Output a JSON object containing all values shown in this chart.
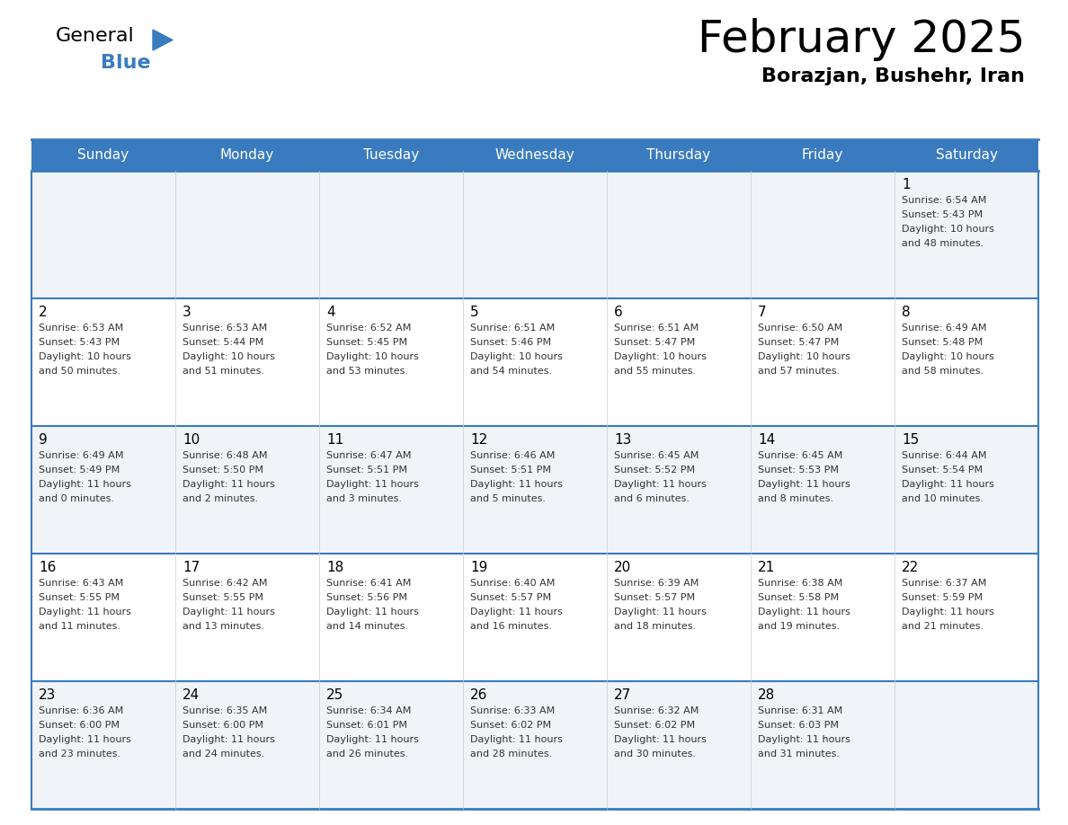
{
  "title": "February 2025",
  "subtitle": "Borazjan, Bushehr, Iran",
  "days_of_week": [
    "Sunday",
    "Monday",
    "Tuesday",
    "Wednesday",
    "Thursday",
    "Friday",
    "Saturday"
  ],
  "header_bg": "#3a7bbf",
  "header_text": "#ffffff",
  "cell_bg_odd": "#f0f3f7",
  "cell_bg_even": "#ffffff",
  "border_color": "#3a7bbf",
  "divider_color": "#3a7bbf",
  "text_color": "#333333",
  "calendar_data": [
    {
      "day": 1,
      "col": 6,
      "row": 0,
      "sunrise": "6:54 AM",
      "sunset": "5:43 PM",
      "daylight": "10 hours and 48 minutes."
    },
    {
      "day": 2,
      "col": 0,
      "row": 1,
      "sunrise": "6:53 AM",
      "sunset": "5:43 PM",
      "daylight": "10 hours and 50 minutes."
    },
    {
      "day": 3,
      "col": 1,
      "row": 1,
      "sunrise": "6:53 AM",
      "sunset": "5:44 PM",
      "daylight": "10 hours and 51 minutes."
    },
    {
      "day": 4,
      "col": 2,
      "row": 1,
      "sunrise": "6:52 AM",
      "sunset": "5:45 PM",
      "daylight": "10 hours and 53 minutes."
    },
    {
      "day": 5,
      "col": 3,
      "row": 1,
      "sunrise": "6:51 AM",
      "sunset": "5:46 PM",
      "daylight": "10 hours and 54 minutes."
    },
    {
      "day": 6,
      "col": 4,
      "row": 1,
      "sunrise": "6:51 AM",
      "sunset": "5:47 PM",
      "daylight": "10 hours and 55 minutes."
    },
    {
      "day": 7,
      "col": 5,
      "row": 1,
      "sunrise": "6:50 AM",
      "sunset": "5:47 PM",
      "daylight": "10 hours and 57 minutes."
    },
    {
      "day": 8,
      "col": 6,
      "row": 1,
      "sunrise": "6:49 AM",
      "sunset": "5:48 PM",
      "daylight": "10 hours and 58 minutes."
    },
    {
      "day": 9,
      "col": 0,
      "row": 2,
      "sunrise": "6:49 AM",
      "sunset": "5:49 PM",
      "daylight": "11 hours and 0 minutes."
    },
    {
      "day": 10,
      "col": 1,
      "row": 2,
      "sunrise": "6:48 AM",
      "sunset": "5:50 PM",
      "daylight": "11 hours and 2 minutes."
    },
    {
      "day": 11,
      "col": 2,
      "row": 2,
      "sunrise": "6:47 AM",
      "sunset": "5:51 PM",
      "daylight": "11 hours and 3 minutes."
    },
    {
      "day": 12,
      "col": 3,
      "row": 2,
      "sunrise": "6:46 AM",
      "sunset": "5:51 PM",
      "daylight": "11 hours and 5 minutes."
    },
    {
      "day": 13,
      "col": 4,
      "row": 2,
      "sunrise": "6:45 AM",
      "sunset": "5:52 PM",
      "daylight": "11 hours and 6 minutes."
    },
    {
      "day": 14,
      "col": 5,
      "row": 2,
      "sunrise": "6:45 AM",
      "sunset": "5:53 PM",
      "daylight": "11 hours and 8 minutes."
    },
    {
      "day": 15,
      "col": 6,
      "row": 2,
      "sunrise": "6:44 AM",
      "sunset": "5:54 PM",
      "daylight": "11 hours and 10 minutes."
    },
    {
      "day": 16,
      "col": 0,
      "row": 3,
      "sunrise": "6:43 AM",
      "sunset": "5:55 PM",
      "daylight": "11 hours and 11 minutes."
    },
    {
      "day": 17,
      "col": 1,
      "row": 3,
      "sunrise": "6:42 AM",
      "sunset": "5:55 PM",
      "daylight": "11 hours and 13 minutes."
    },
    {
      "day": 18,
      "col": 2,
      "row": 3,
      "sunrise": "6:41 AM",
      "sunset": "5:56 PM",
      "daylight": "11 hours and 14 minutes."
    },
    {
      "day": 19,
      "col": 3,
      "row": 3,
      "sunrise": "6:40 AM",
      "sunset": "5:57 PM",
      "daylight": "11 hours and 16 minutes."
    },
    {
      "day": 20,
      "col": 4,
      "row": 3,
      "sunrise": "6:39 AM",
      "sunset": "5:57 PM",
      "daylight": "11 hours and 18 minutes."
    },
    {
      "day": 21,
      "col": 5,
      "row": 3,
      "sunrise": "6:38 AM",
      "sunset": "5:58 PM",
      "daylight": "11 hours and 19 minutes."
    },
    {
      "day": 22,
      "col": 6,
      "row": 3,
      "sunrise": "6:37 AM",
      "sunset": "5:59 PM",
      "daylight": "11 hours and 21 minutes."
    },
    {
      "day": 23,
      "col": 0,
      "row": 4,
      "sunrise": "6:36 AM",
      "sunset": "6:00 PM",
      "daylight": "11 hours and 23 minutes."
    },
    {
      "day": 24,
      "col": 1,
      "row": 4,
      "sunrise": "6:35 AM",
      "sunset": "6:00 PM",
      "daylight": "11 hours and 24 minutes."
    },
    {
      "day": 25,
      "col": 2,
      "row": 4,
      "sunrise": "6:34 AM",
      "sunset": "6:01 PM",
      "daylight": "11 hours and 26 minutes."
    },
    {
      "day": 26,
      "col": 3,
      "row": 4,
      "sunrise": "6:33 AM",
      "sunset": "6:02 PM",
      "daylight": "11 hours and 28 minutes."
    },
    {
      "day": 27,
      "col": 4,
      "row": 4,
      "sunrise": "6:32 AM",
      "sunset": "6:02 PM",
      "daylight": "11 hours and 30 minutes."
    },
    {
      "day": 28,
      "col": 5,
      "row": 4,
      "sunrise": "6:31 AM",
      "sunset": "6:03 PM",
      "daylight": "11 hours and 31 minutes."
    }
  ]
}
